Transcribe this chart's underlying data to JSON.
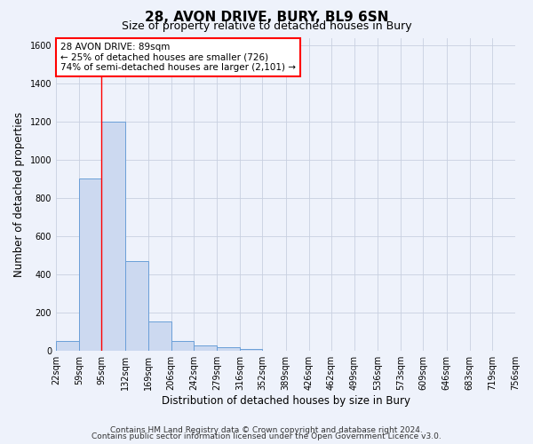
{
  "title": "28, AVON DRIVE, BURY, BL9 6SN",
  "subtitle": "Size of property relative to detached houses in Bury",
  "xlabel": "Distribution of detached houses by size in Bury",
  "ylabel": "Number of detached properties",
  "bin_edges": [
    22,
    59,
    95,
    132,
    169,
    206,
    242,
    279,
    316,
    352,
    389,
    426,
    462,
    499,
    536,
    573,
    609,
    646,
    683,
    719,
    756
  ],
  "bar_heights": [
    50,
    900,
    1200,
    470,
    150,
    50,
    25,
    15,
    10,
    0,
    0,
    0,
    0,
    0,
    0,
    0,
    0,
    0,
    0,
    0
  ],
  "bar_color": "#ccd9f0",
  "bar_edge_color": "#6a9fd8",
  "tick_labels": [
    "22sqm",
    "59sqm",
    "95sqm",
    "132sqm",
    "169sqm",
    "206sqm",
    "242sqm",
    "279sqm",
    "316sqm",
    "352sqm",
    "389sqm",
    "426sqm",
    "462sqm",
    "499sqm",
    "536sqm",
    "573sqm",
    "609sqm",
    "646sqm",
    "683sqm",
    "719sqm",
    "756sqm"
  ],
  "ylim": [
    0,
    1640
  ],
  "yticks": [
    0,
    200,
    400,
    600,
    800,
    1000,
    1200,
    1400,
    1600
  ],
  "red_line_x": 95,
  "annotation_line1": "28 AVON DRIVE: 89sqm",
  "annotation_line2": "← 25% of detached houses are smaller (726)",
  "annotation_line3": "74% of semi-detached houses are larger (2,101) →",
  "footer1": "Contains HM Land Registry data © Crown copyright and database right 2024.",
  "footer2": "Contains public sector information licensed under the Open Government Licence v3.0.",
  "bg_color": "#eef2fb",
  "grid_color": "#c8d0e0",
  "title_fontsize": 11,
  "subtitle_fontsize": 9,
  "axis_label_fontsize": 8.5,
  "tick_fontsize": 7,
  "footer_fontsize": 6.5,
  "ann_fontsize": 7.5
}
